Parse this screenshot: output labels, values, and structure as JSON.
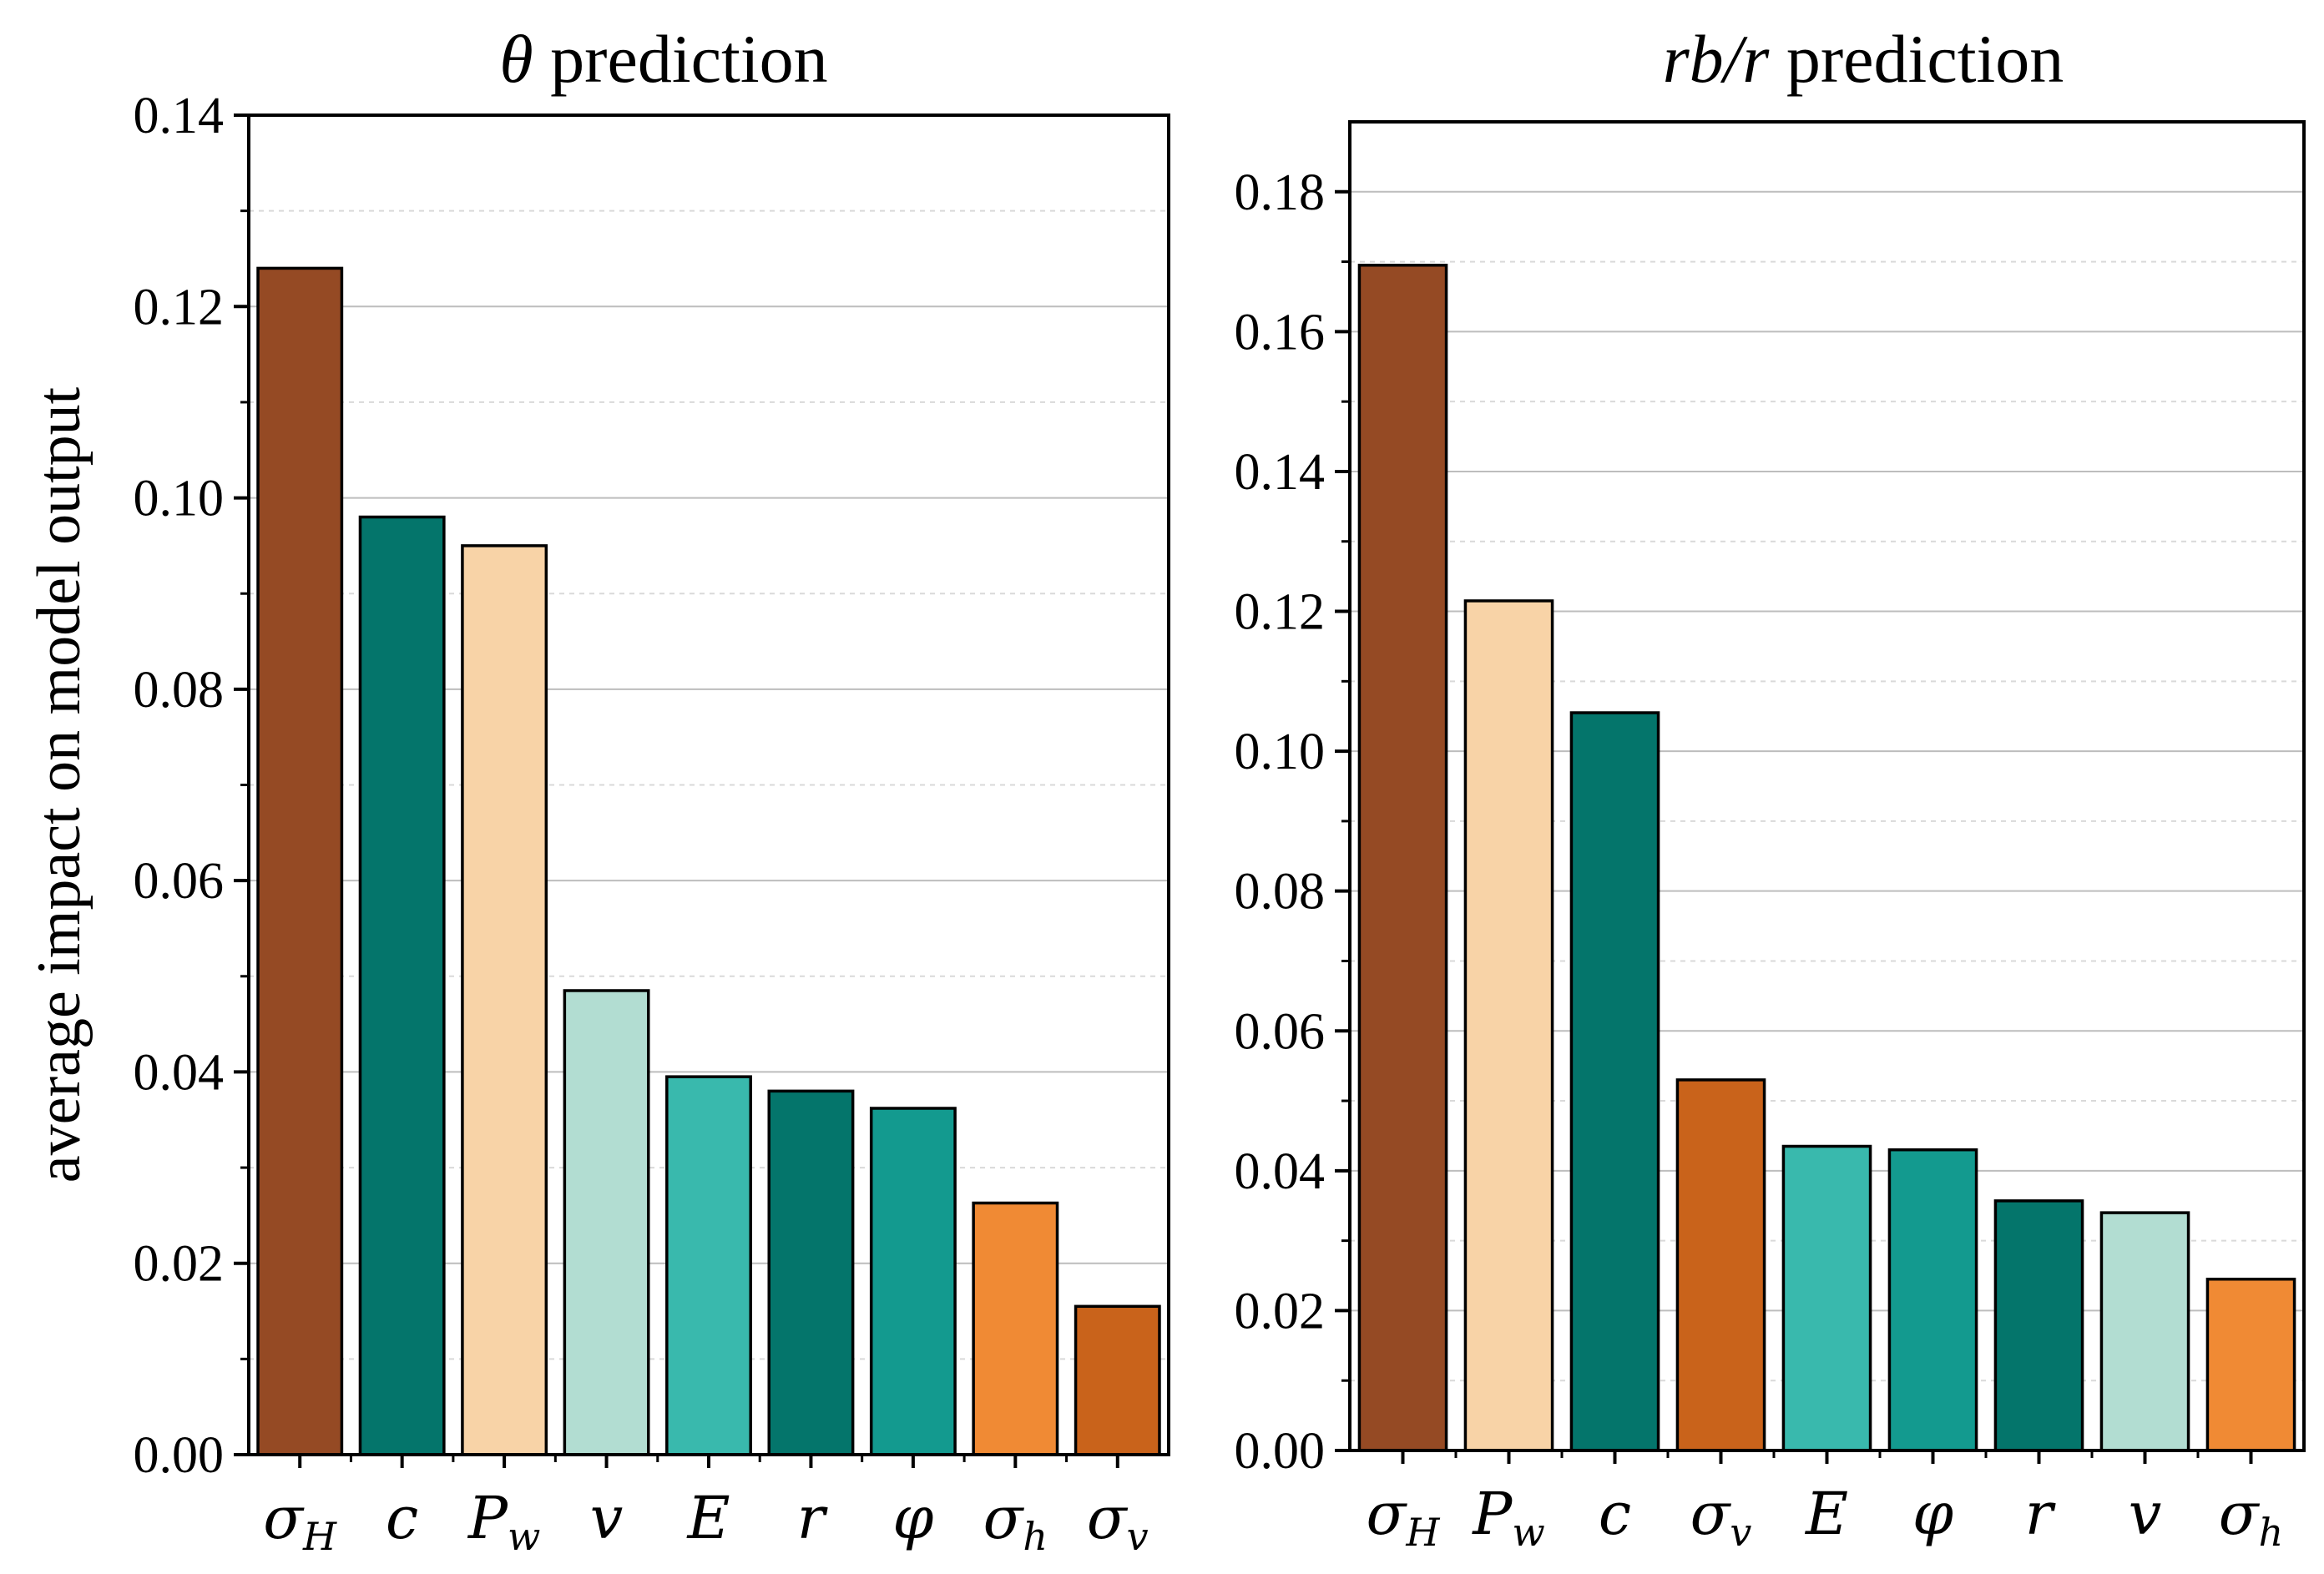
{
  "chart_data": [
    {
      "type": "bar",
      "title": "θ prediction",
      "title_parts": [
        {
          "text": "θ",
          "italic": true
        },
        {
          "text": " prediction",
          "italic": false
        }
      ],
      "ylabel": "average impact on model output",
      "xlabel": "",
      "ylim": [
        0,
        0.14
      ],
      "yticks": [
        0.0,
        0.02,
        0.04,
        0.06,
        0.08,
        0.1,
        0.12,
        0.14
      ],
      "ytick_labels": [
        "0.00",
        "0.02",
        "0.04",
        "0.06",
        "0.08",
        "0.10",
        "0.12",
        "0.14"
      ],
      "categories": [
        {
          "base": "σ",
          "sub": "H"
        },
        {
          "base": "c",
          "sub": ""
        },
        {
          "base": "P",
          "sub": "w"
        },
        {
          "base": "v",
          "sub": ""
        },
        {
          "base": "E",
          "sub": ""
        },
        {
          "base": "r",
          "sub": ""
        },
        {
          "base": "φ",
          "sub": ""
        },
        {
          "base": "σ",
          "sub": "h"
        },
        {
          "base": "σ",
          "sub": "v"
        }
      ],
      "values": [
        0.124,
        0.098,
        0.095,
        0.0485,
        0.0395,
        0.038,
        0.0362,
        0.0263,
        0.0155
      ],
      "colors": [
        "#954a24",
        "#04756b",
        "#f8d3a7",
        "#b2ddd2",
        "#39b9ad",
        "#04756b",
        "#139a8f",
        "#f08a34",
        "#c9631b"
      ],
      "grid": true
    },
    {
      "type": "bar",
      "title": "rb/r prediction",
      "title_parts": [
        {
          "text": "rb/r",
          "italic": true
        },
        {
          "text": " prediction",
          "italic": false
        }
      ],
      "ylabel": "",
      "xlabel": "",
      "ylim": [
        0,
        0.19
      ],
      "yticks": [
        0.0,
        0.02,
        0.04,
        0.06,
        0.08,
        0.1,
        0.12,
        0.14,
        0.16,
        0.18
      ],
      "ytick_labels": [
        "0.00",
        "0.02",
        "0.04",
        "0.06",
        "0.08",
        "0.10",
        "0.12",
        "0.14",
        "0.16",
        "0.18"
      ],
      "categories": [
        {
          "base": "σ",
          "sub": "H"
        },
        {
          "base": "P",
          "sub": "w"
        },
        {
          "base": "c",
          "sub": ""
        },
        {
          "base": "σ",
          "sub": "v"
        },
        {
          "base": "E",
          "sub": ""
        },
        {
          "base": "φ",
          "sub": ""
        },
        {
          "base": "r",
          "sub": ""
        },
        {
          "base": "v",
          "sub": ""
        },
        {
          "base": "σ",
          "sub": "h"
        }
      ],
      "values": [
        0.1695,
        0.1215,
        0.1055,
        0.053,
        0.0435,
        0.043,
        0.0357,
        0.034,
        0.0245
      ],
      "colors": [
        "#954a24",
        "#f8d3a7",
        "#04756b",
        "#c9631b",
        "#39b9ad",
        "#139a8f",
        "#04756b",
        "#b2ddd2",
        "#f08a34"
      ],
      "grid": true
    }
  ]
}
